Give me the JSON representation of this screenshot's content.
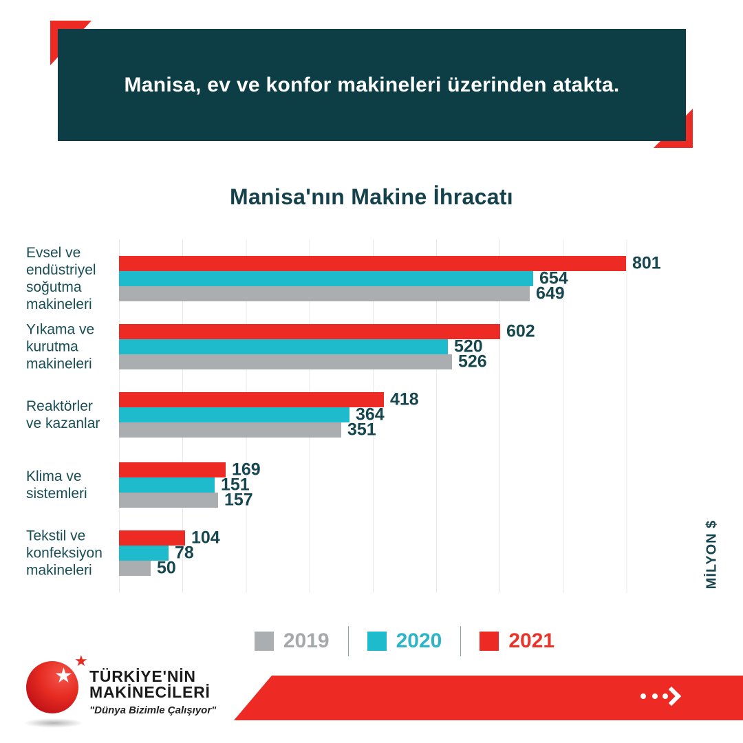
{
  "header": {
    "text": "Manisa, ev ve konfor makineleri üzerinden atakta."
  },
  "title": "Manisa'nın Makine İhracatı",
  "chart_data": {
    "type": "bar",
    "orientation": "horizontal",
    "title": "Manisa'nın Makine İhracatı",
    "unit_label": "MİLYON $",
    "xlim": [
      0,
      900
    ],
    "gridline_step": 100,
    "grid": true,
    "categories": [
      "Evsel ve endüstriyel soğutma makineleri",
      "Yıkama ve kurutma makineleri",
      "Reaktörler ve kazanlar",
      "Klima ve sistemleri",
      "Tekstil ve konfeksiyon makineleri"
    ],
    "category_label_lines": [
      [
        "Evsel ve",
        "endüstriyel",
        "soğutma",
        "makineleri"
      ],
      [
        "Yıkama ve",
        "kurutma",
        "makineleri"
      ],
      [
        "Reaktörler",
        "ve kazanlar"
      ],
      [
        "Klima ve",
        "sistemleri"
      ],
      [
        "Tekstil ve",
        "konfeksiyon",
        "makineleri"
      ]
    ],
    "series": [
      {
        "name": "2021",
        "color": "#ED2B24",
        "values": [
          801,
          602,
          418,
          169,
          104
        ]
      },
      {
        "name": "2020",
        "color": "#1EBBCD",
        "values": [
          654,
          520,
          364,
          151,
          78
        ]
      },
      {
        "name": "2019",
        "color": "#ABAEB1",
        "values": [
          649,
          526,
          351,
          157,
          50
        ]
      }
    ]
  },
  "legend": {
    "items": [
      {
        "label": "2019",
        "swatch_color": "#ABAEB1",
        "text_color": "#A6A9AC"
      },
      {
        "label": "2020",
        "swatch_color": "#1EBBCD",
        "text_color": "#2CB5C6"
      },
      {
        "label": "2021",
        "swatch_color": "#ED2B24",
        "text_color": "#E9342B"
      }
    ]
  },
  "footer": {
    "logo": {
      "line1": "TÜRKİYE'NİN",
      "line2": "MAKİNECİLERİ",
      "tagline": "\"Dünya Bizimle Çalışıyor\"",
      "star_icon": "star-icon"
    },
    "arrow_icon": "ellipsis-chevron-right-icon"
  },
  "colors": {
    "teal_banner": "#0D3E46",
    "chart_text": "#16464F",
    "red": "#ED2B24",
    "cyan": "#1EBBCD",
    "gray": "#ABAEB1",
    "gridline": "#E8E8E8"
  }
}
